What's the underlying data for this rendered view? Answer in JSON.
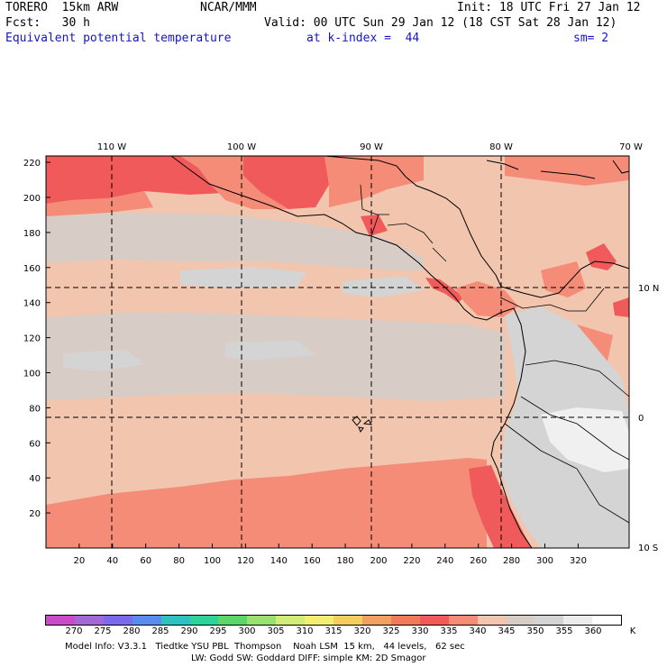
{
  "header": {
    "model": "TORERO  15km ARW",
    "org": "NCAR/MMM",
    "init": "Init: 18 UTC Fri 27 Jan 12",
    "fcst": "Fcst:   30 h",
    "valid": "Valid: 00 UTC Sun 29 Jan 12 (18 CST Sat 28 Jan 12)",
    "field": "Equivalent potential temperature",
    "level": "at k-index =  44",
    "smooth": "sm= 2"
  },
  "map": {
    "x_ticks": [
      "20",
      "40",
      "60",
      "80",
      "100",
      "120",
      "140",
      "160",
      "180",
      "200",
      "220",
      "240",
      "260",
      "280",
      "300",
      "320"
    ],
    "y_ticks": [
      "20",
      "40",
      "60",
      "80",
      "100",
      "120",
      "140",
      "160",
      "180",
      "200",
      "220"
    ],
    "lon_labels": [
      "110 W",
      "100 W",
      "90 W",
      "80 W",
      "70 W"
    ],
    "lat_labels": [
      "10 N",
      "0",
      "10 S"
    ],
    "colors": {
      "c330": "#f05a5a",
      "c335": "#f48c78",
      "c340": "#f1c5ae",
      "c345": "#d8ccc6",
      "c350": "#d4d4d4",
      "c360": "#f0f0f0",
      "grid": "#000000"
    }
  },
  "colorbar": {
    "labels": [
      "270",
      "275",
      "280",
      "285",
      "290",
      "295",
      "300",
      "305",
      "310",
      "315",
      "320",
      "325",
      "330",
      "335",
      "340",
      "345",
      "350",
      "355",
      "360"
    ],
    "unit": "K",
    "colors": [
      "#c84bc8",
      "#a268d6",
      "#7b6bec",
      "#5a8cf0",
      "#2fc0c0",
      "#2dd39a",
      "#5cd56a",
      "#99e070",
      "#d2ec78",
      "#f2ee72",
      "#f2cf5e",
      "#f0a060",
      "#f07a5a",
      "#f05a5a",
      "#f48c78",
      "#f1c5ae",
      "#d8ccc6",
      "#d4d4d4",
      "#ececec",
      "#ffffff"
    ]
  },
  "footer": {
    "line1": "Model Info: V3.3.1   Tiedtke YSU PBL  Thompson    Noah LSM  15 km,   44 levels,   62 sec",
    "line2": "LW: Godd SW: Goddard DIFF: simple KM: 2D Smagor"
  }
}
